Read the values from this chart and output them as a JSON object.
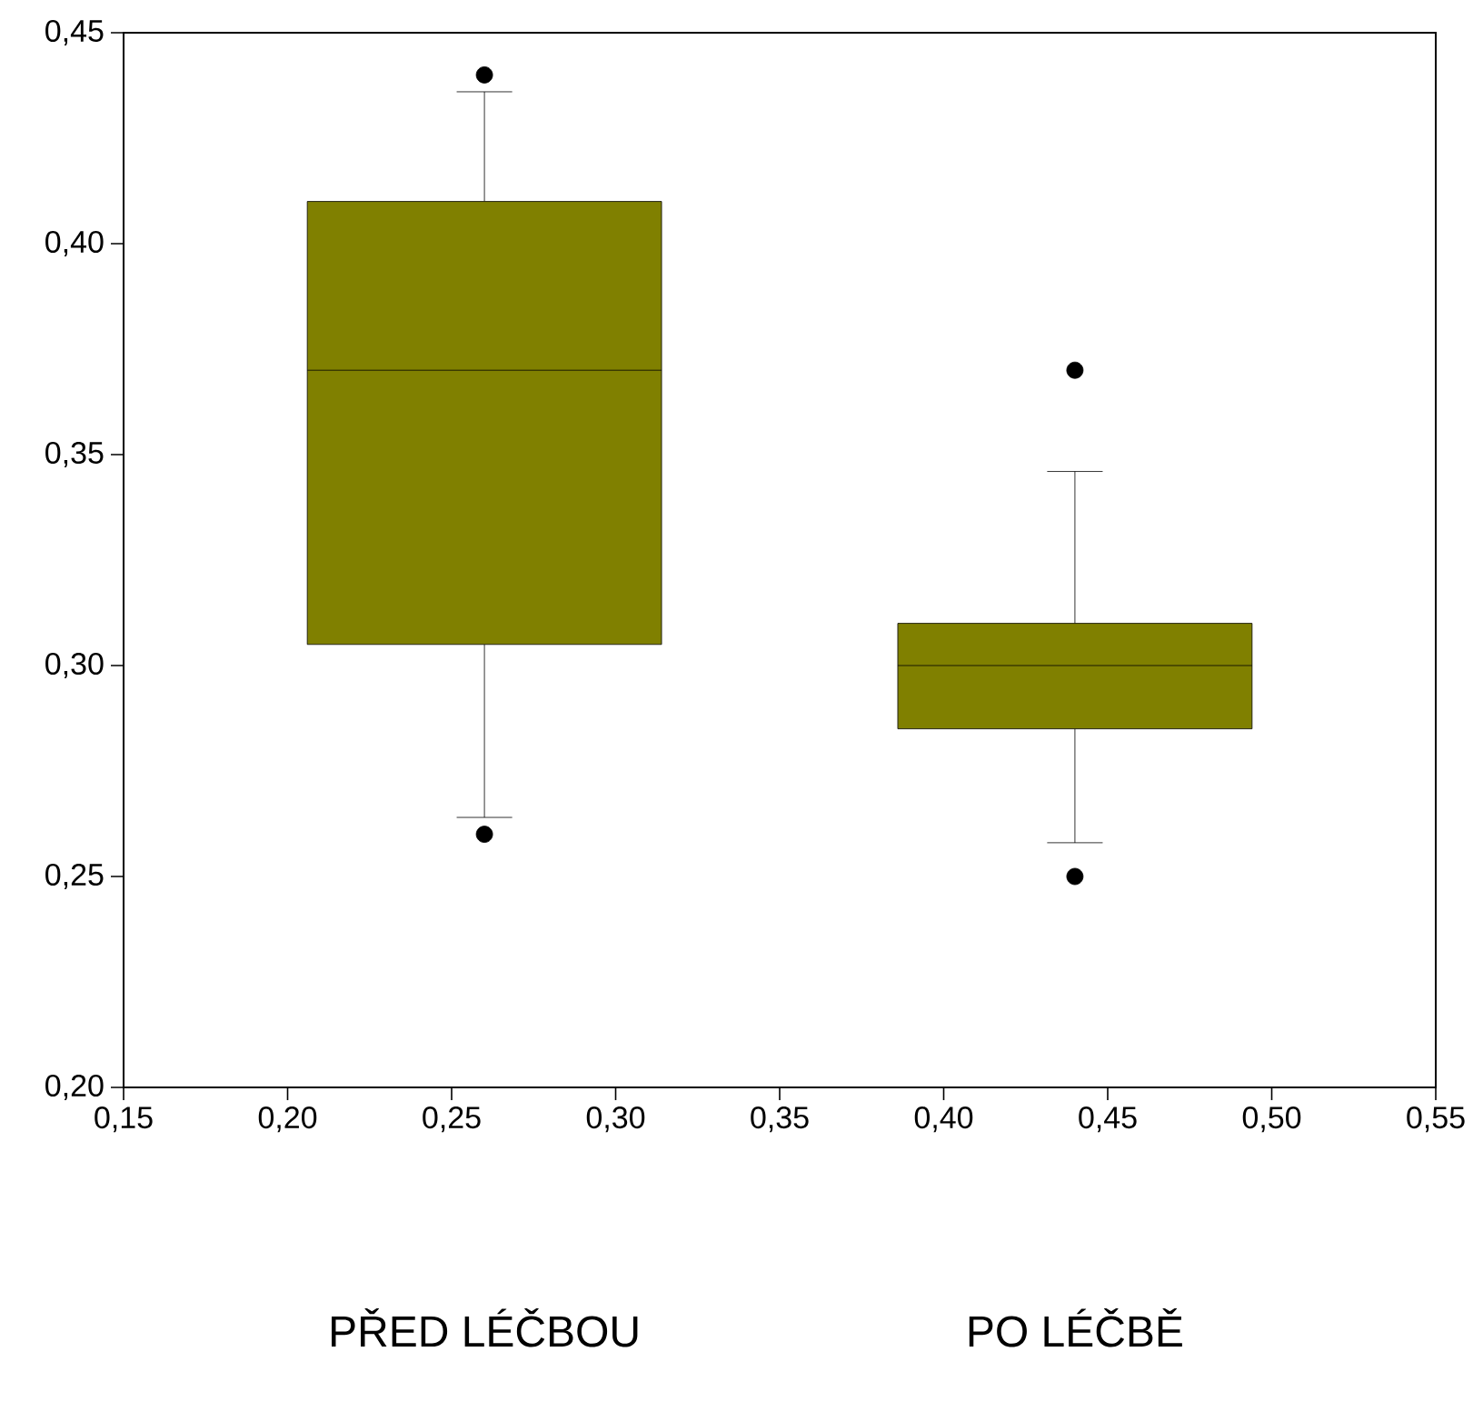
{
  "chart_data": {
    "type": "box",
    "categories": [
      "PŘED LÉČBOU",
      "PO LÉČBĚ"
    ],
    "color": "#808000",
    "marker": "circle",
    "boxes": [
      {
        "low": 0.264,
        "q1": 0.305,
        "median": 0.37,
        "q3": 0.41,
        "high": 0.436,
        "outliers": [
          0.44,
          0.26
        ]
      },
      {
        "low": 0.258,
        "q1": 0.285,
        "median": 0.3,
        "q3": 0.31,
        "high": 0.346,
        "outliers": [
          0.37,
          0.25
        ]
      }
    ],
    "x2lim": [
      0.15,
      0.55
    ],
    "ylim": [
      0.2,
      0.45
    ],
    "x2ticks": [
      {
        "value": 0.15,
        "label": "0,15"
      },
      {
        "value": 0.2,
        "label": "0,20"
      },
      {
        "value": 0.25,
        "label": "0,25"
      },
      {
        "value": 0.3,
        "label": "0,30"
      },
      {
        "value": 0.35,
        "label": "0,35"
      },
      {
        "value": 0.4,
        "label": "0,40"
      },
      {
        "value": 0.45,
        "label": "0,45"
      },
      {
        "value": 0.5,
        "label": "0,50"
      },
      {
        "value": 0.55,
        "label": "0,55"
      }
    ],
    "yticks": [
      {
        "value": 0.2,
        "label": "0,20"
      },
      {
        "value": 0.25,
        "label": "0,25"
      },
      {
        "value": 0.3,
        "label": "0,30"
      },
      {
        "value": 0.35,
        "label": "0,35"
      },
      {
        "value": 0.4,
        "label": "0,40"
      },
      {
        "value": 0.45,
        "label": "0,45"
      }
    ]
  }
}
